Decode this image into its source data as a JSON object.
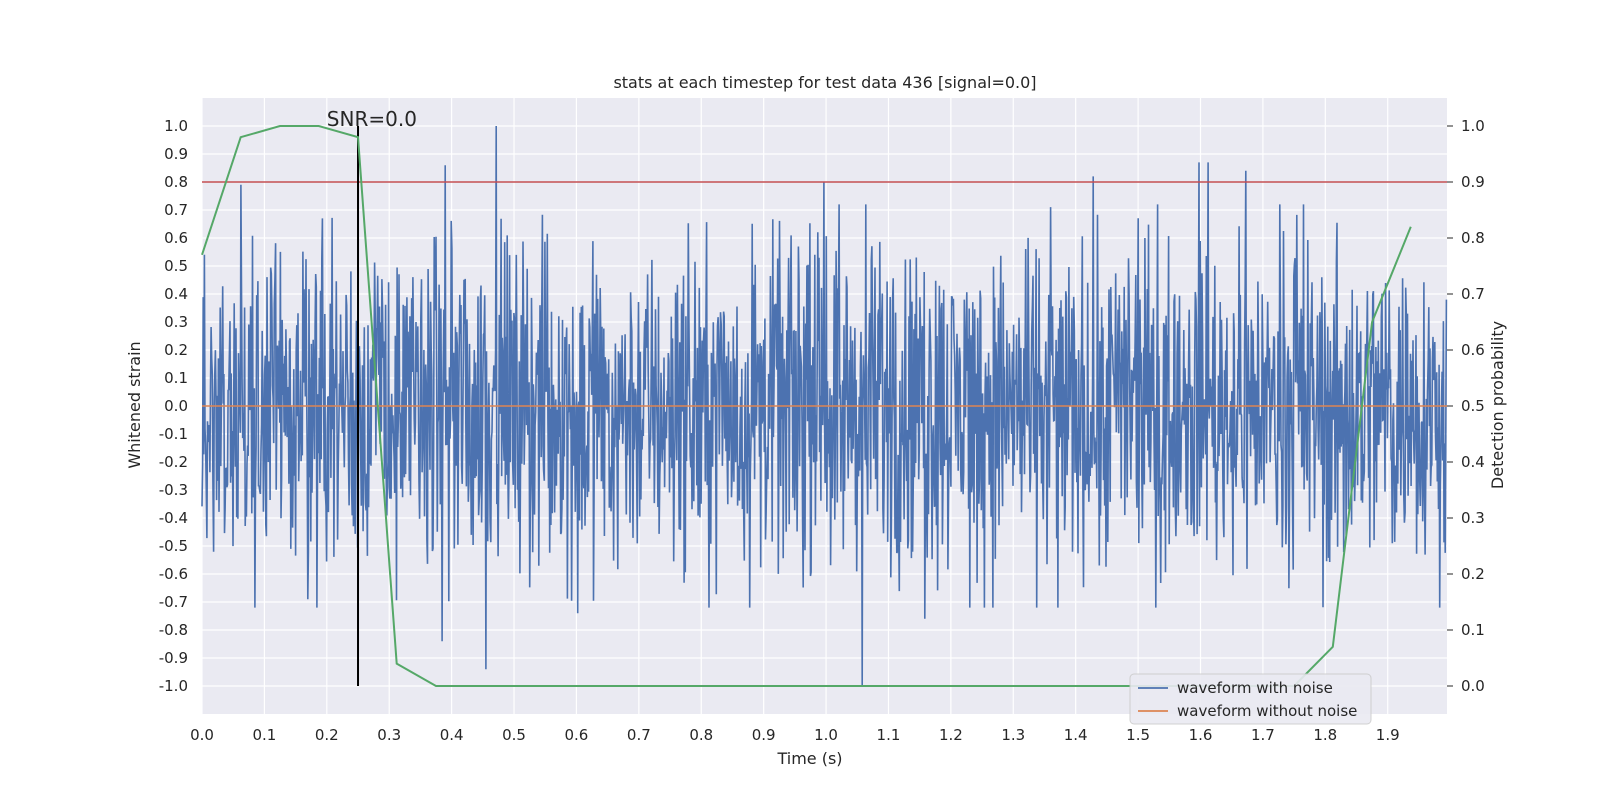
{
  "chart_data": {
    "type": "line",
    "title": "stats at each timestep for test data 436 [signal=0.0]",
    "xlabel": "Time (s)",
    "ylabel": "Whitened strain",
    "y2label": "Detection probability",
    "xlim": [
      0.0,
      1.995
    ],
    "ylim": [
      -1.1,
      1.1
    ],
    "y2lim": [
      -0.05,
      1.05
    ],
    "xticks": [
      "0.0",
      "0.1",
      "0.2",
      "0.3",
      "0.4",
      "0.5",
      "0.6",
      "0.7",
      "0.8",
      "0.9",
      "1.0",
      "1.1",
      "1.2",
      "1.3",
      "1.4",
      "1.5",
      "1.6",
      "1.7",
      "1.8",
      "1.9"
    ],
    "yticks": [
      "1.0",
      "0.9",
      "0.8",
      "0.7",
      "0.6",
      "0.5",
      "0.4",
      "0.3",
      "0.2",
      "0.1",
      "0.0",
      "-0.1",
      "-0.2",
      "-0.3",
      "-0.4",
      "-0.5",
      "-0.6",
      "-0.7",
      "-0.8",
      "-0.9",
      "-1.0"
    ],
    "y2ticks": [
      "1.0",
      "0.9",
      "0.8",
      "0.7",
      "0.6",
      "0.5",
      "0.4",
      "0.3",
      "0.2",
      "0.1",
      "0.0"
    ],
    "grid": true,
    "background": "#EAEAF2",
    "legend_position": "bottom-right",
    "series": [
      {
        "name": "waveform with noise",
        "color": "#4C72B0",
        "description": "noisy whitened strain, dense random signal between about -1.0 and 1.0",
        "peaks": [
          {
            "x": 0.062,
            "y": 0.79
          },
          {
            "x": 0.193,
            "y": 0.67
          },
          {
            "x": 0.39,
            "y": 0.86
          },
          {
            "x": 0.471,
            "y": 1.0
          },
          {
            "x": 0.997,
            "y": 0.8
          },
          {
            "x": 1.428,
            "y": 0.82
          },
          {
            "x": 1.598,
            "y": 0.87
          },
          {
            "x": 1.612,
            "y": 0.87
          },
          {
            "x": 1.673,
            "y": 0.84
          }
        ],
        "troughs": [
          {
            "x": 0.385,
            "y": -0.84
          },
          {
            "x": 0.455,
            "y": -0.94
          },
          {
            "x": 0.602,
            "y": -0.74
          },
          {
            "x": 1.058,
            "y": -1.0
          },
          {
            "x": 1.158,
            "y": -0.76
          }
        ]
      },
      {
        "name": "waveform without noise",
        "color": "#DD8452",
        "y_constant": 0.0
      },
      {
        "name": "detection probability",
        "axis": "right",
        "color": "#55A868",
        "x": [
          0.0,
          0.062,
          0.125,
          0.187,
          0.25,
          0.312,
          0.375,
          0.437,
          1.75,
          1.812,
          1.875,
          1.937
        ],
        "y": [
          0.77,
          0.98,
          1.0,
          1.0,
          0.98,
          0.04,
          0.0,
          0.0,
          0.0,
          0.07,
          0.65,
          0.82
        ]
      }
    ],
    "threshold_line": {
      "y2": 0.9,
      "color": "#C44E52"
    },
    "marker_line": {
      "x": 0.25,
      "y_from": -1.0,
      "y_to": 1.0,
      "color": "#000000"
    },
    "annotation": {
      "text": "SNR=0.0",
      "x": 0.2,
      "y": 1.0
    }
  }
}
